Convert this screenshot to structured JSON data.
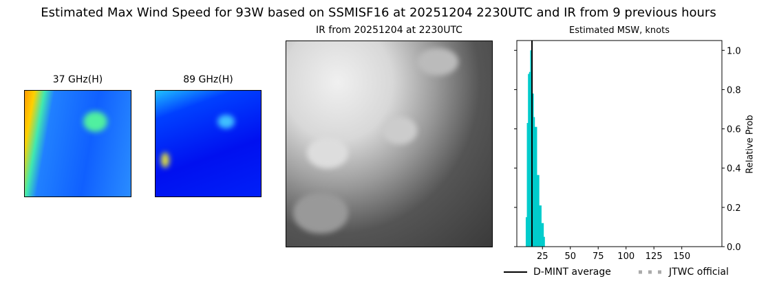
{
  "title": "Estimated Max Wind Speed for 93W based on SSMISF16 at 20251204 2230UTC and IR from 9 previous hours",
  "panels": {
    "p37": "37 GHz(H)",
    "p89": "89 GHz(H)",
    "ir": "IR from 20251204 at 2230UTC"
  },
  "chart_data": {
    "type": "bar",
    "title": "Estimated MSW, knots",
    "xlabel": "",
    "ylabel": "Relative Prob",
    "xlim": [
      2,
      186
    ],
    "ylim": [
      0,
      1.05
    ],
    "xticks": [
      25,
      50,
      75,
      100,
      125,
      150
    ],
    "yticks": [
      0.0,
      0.2,
      0.4,
      0.6,
      0.8,
      1.0
    ],
    "ytick_labels": [
      "0.0",
      "0.2",
      "0.4",
      "0.6",
      "0.8",
      "1.0"
    ],
    "y_axis_side": "right",
    "bar_color": "#00cccc",
    "x": [
      10,
      11,
      12,
      13,
      14,
      15,
      16,
      17,
      18,
      19,
      20,
      21,
      22,
      23,
      24,
      25,
      26
    ],
    "values": [
      0.15,
      0.63,
      0.88,
      0.89,
      1.0,
      0.84,
      0.78,
      0.66,
      0.61,
      0.61,
      0.365,
      0.365,
      0.21,
      0.21,
      0.12,
      0.12,
      0.05
    ],
    "dmint_average": 15.6,
    "legend": [
      {
        "name": "D-MINT average",
        "style": "solid",
        "color": "#000000"
      },
      {
        "name": "JTWC official",
        "style": "dotted",
        "color": "#aaaaaa"
      }
    ],
    "legend_placement": "bottom"
  }
}
